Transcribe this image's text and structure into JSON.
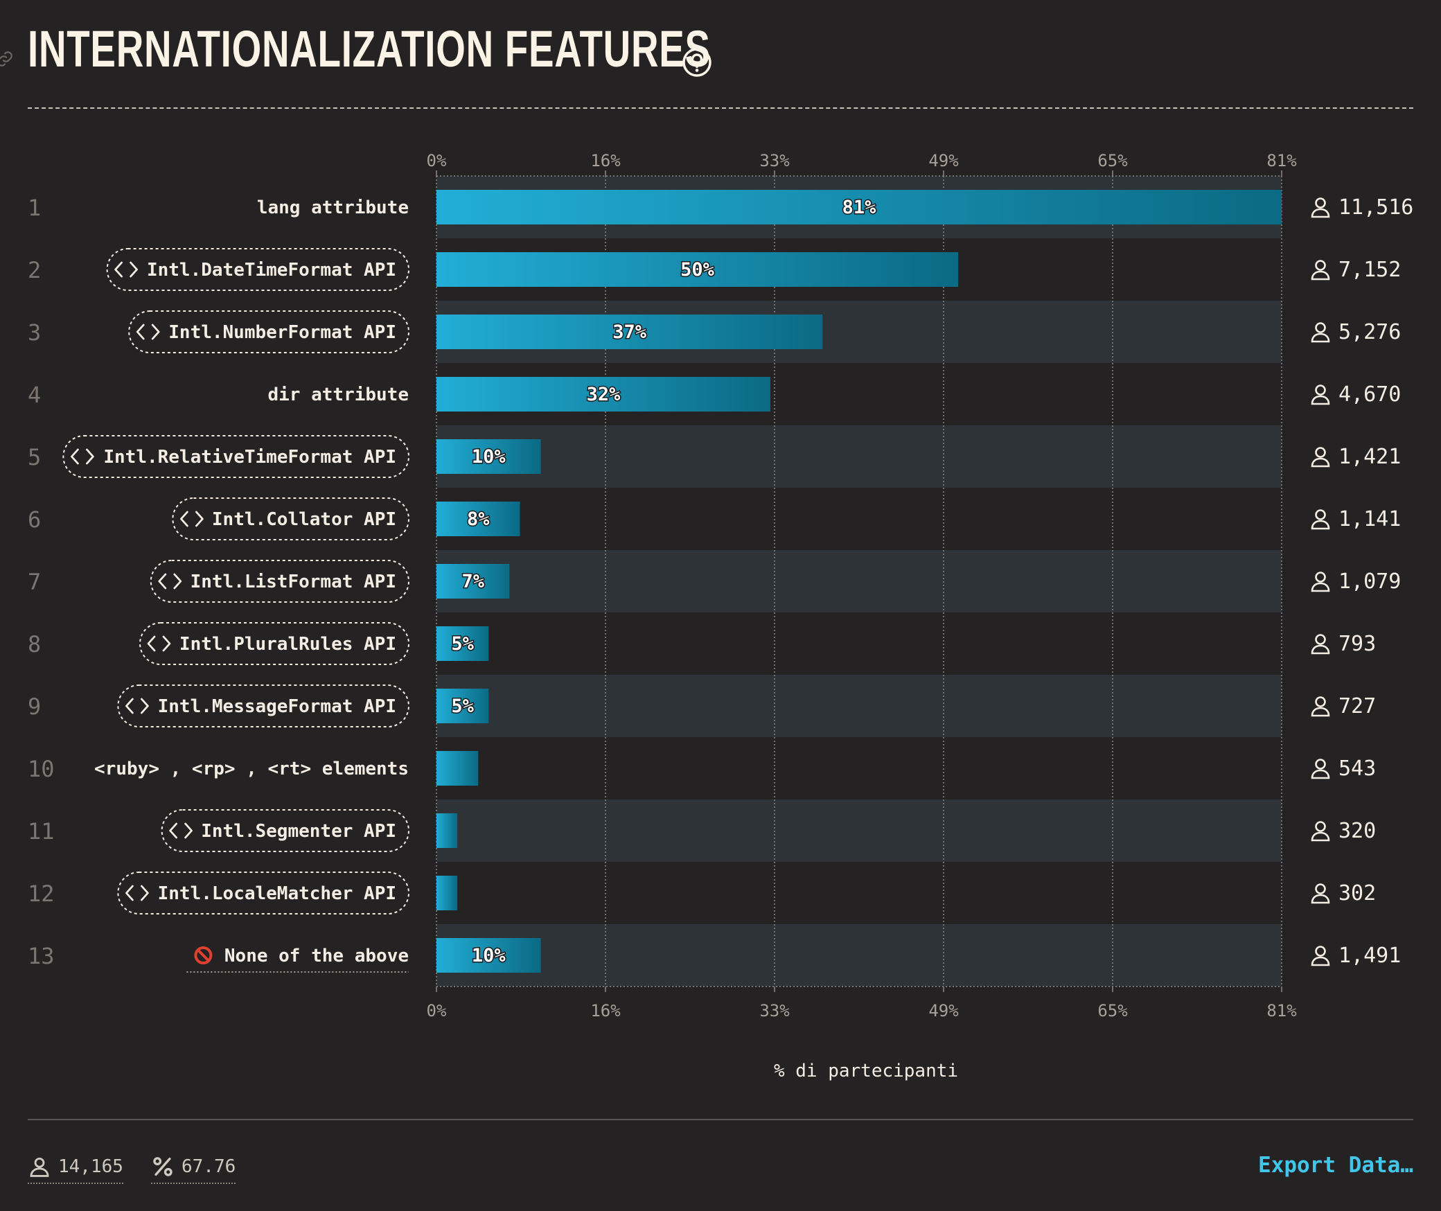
{
  "title": "INTERNATIONALIZATION FEATURES",
  "icons": {
    "title_link": "link-icon",
    "title_help": "help-circle-icon",
    "respondents": "user-icon",
    "api_badge": "code-brackets-icon",
    "none": "prohibited-icon",
    "percent": "percent-icon"
  },
  "colors": {
    "background": "#252223",
    "row_band": "#2d3337",
    "bar_light": "#22aed7",
    "bar_dark": "#0b6a84",
    "accent": "#41c6ea"
  },
  "chart_data": {
    "type": "bar",
    "orientation": "horizontal",
    "xlabel": "% di partecipanti",
    "xlim": [
      0,
      81
    ],
    "x_ticks": [
      "0%",
      "16%",
      "33%",
      "49%",
      "65%",
      "81%"
    ],
    "grid": true,
    "categories": [
      {
        "rank": "1",
        "label": "lang attribute",
        "api": false,
        "value": 81,
        "value_label": "81%",
        "count": "11,516"
      },
      {
        "rank": "2",
        "label": "Intl.DateTimeFormat API",
        "api": true,
        "value": 50,
        "value_label": "50%",
        "count": "7,152"
      },
      {
        "rank": "3",
        "label": "Intl.NumberFormat API",
        "api": true,
        "value": 37,
        "value_label": "37%",
        "count": "5,276"
      },
      {
        "rank": "4",
        "label": "dir attribute",
        "api": false,
        "value": 32,
        "value_label": "32%",
        "count": "4,670"
      },
      {
        "rank": "5",
        "label": "Intl.RelativeTimeFormat API",
        "api": true,
        "value": 10,
        "value_label": "10%",
        "count": "1,421"
      },
      {
        "rank": "6",
        "label": "Intl.Collator API",
        "api": true,
        "value": 8,
        "value_label": "8%",
        "count": "1,141"
      },
      {
        "rank": "7",
        "label": "Intl.ListFormat API",
        "api": true,
        "value": 7,
        "value_label": "7%",
        "count": "1,079"
      },
      {
        "rank": "8",
        "label": "Intl.PluralRules API",
        "api": true,
        "value": 5,
        "value_label": "5%",
        "count": "793"
      },
      {
        "rank": "9",
        "label": "Intl.MessageFormat API",
        "api": true,
        "value": 5,
        "value_label": "5%",
        "count": "727"
      },
      {
        "rank": "10",
        "label": "<ruby> , <rp> , <rt> elements",
        "api": false,
        "value": 4,
        "value_label": "",
        "count": "543"
      },
      {
        "rank": "11",
        "label": "Intl.Segmenter API",
        "api": true,
        "value": 2,
        "value_label": "",
        "count": "320"
      },
      {
        "rank": "12",
        "label": "Intl.LocaleMatcher API",
        "api": true,
        "value": 2,
        "value_label": "",
        "count": "302"
      },
      {
        "rank": "13",
        "label": "None of the above",
        "api": false,
        "none": true,
        "value": 10,
        "value_label": "10%",
        "count": "1,491"
      }
    ]
  },
  "footer": {
    "respondents": "14,165",
    "percent": "67.76",
    "export_label": "Export Data…"
  }
}
